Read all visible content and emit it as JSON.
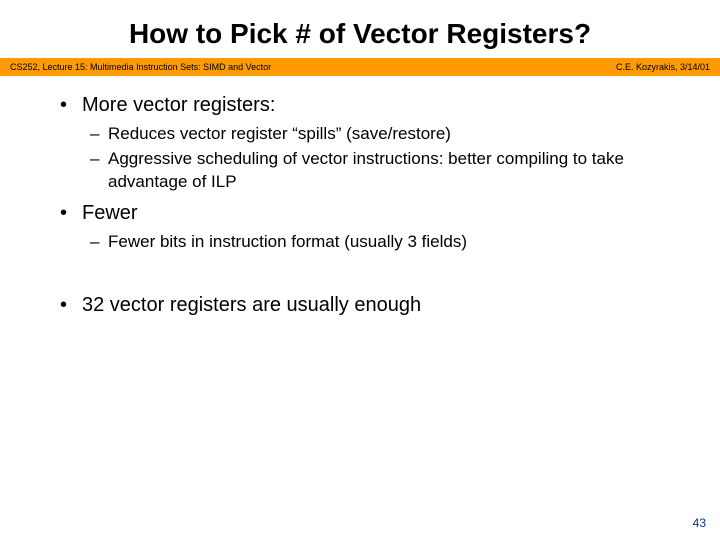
{
  "title": "How to Pick # of Vector Registers?",
  "ribbon": {
    "left": "CS252, Lecture 15: Multimedia Instruction Sets: SIMD and Vector",
    "right": "C.E. Kozyrakis, 3/14/01",
    "bg": "#ff9a00"
  },
  "bullets": {
    "p1": "More vector registers:",
    "p1a": "Reduces vector register “spills” (save/restore)",
    "p1b": "Aggressive scheduling of vector instructions: better compiling to take advantage of ILP",
    "p2": "Fewer",
    "p2a": "Fewer bits in instruction format (usually 3 fields)",
    "p3": "32 vector registers are usually enough"
  },
  "pagenum": "43",
  "style": {
    "title_fontsize": 28,
    "body_fontsize": 20,
    "sub_fontsize": 17,
    "ribbon_fontsize": 9,
    "bg": "#ffffff",
    "text_color": "#000000",
    "pagenum_color": "#003399"
  }
}
